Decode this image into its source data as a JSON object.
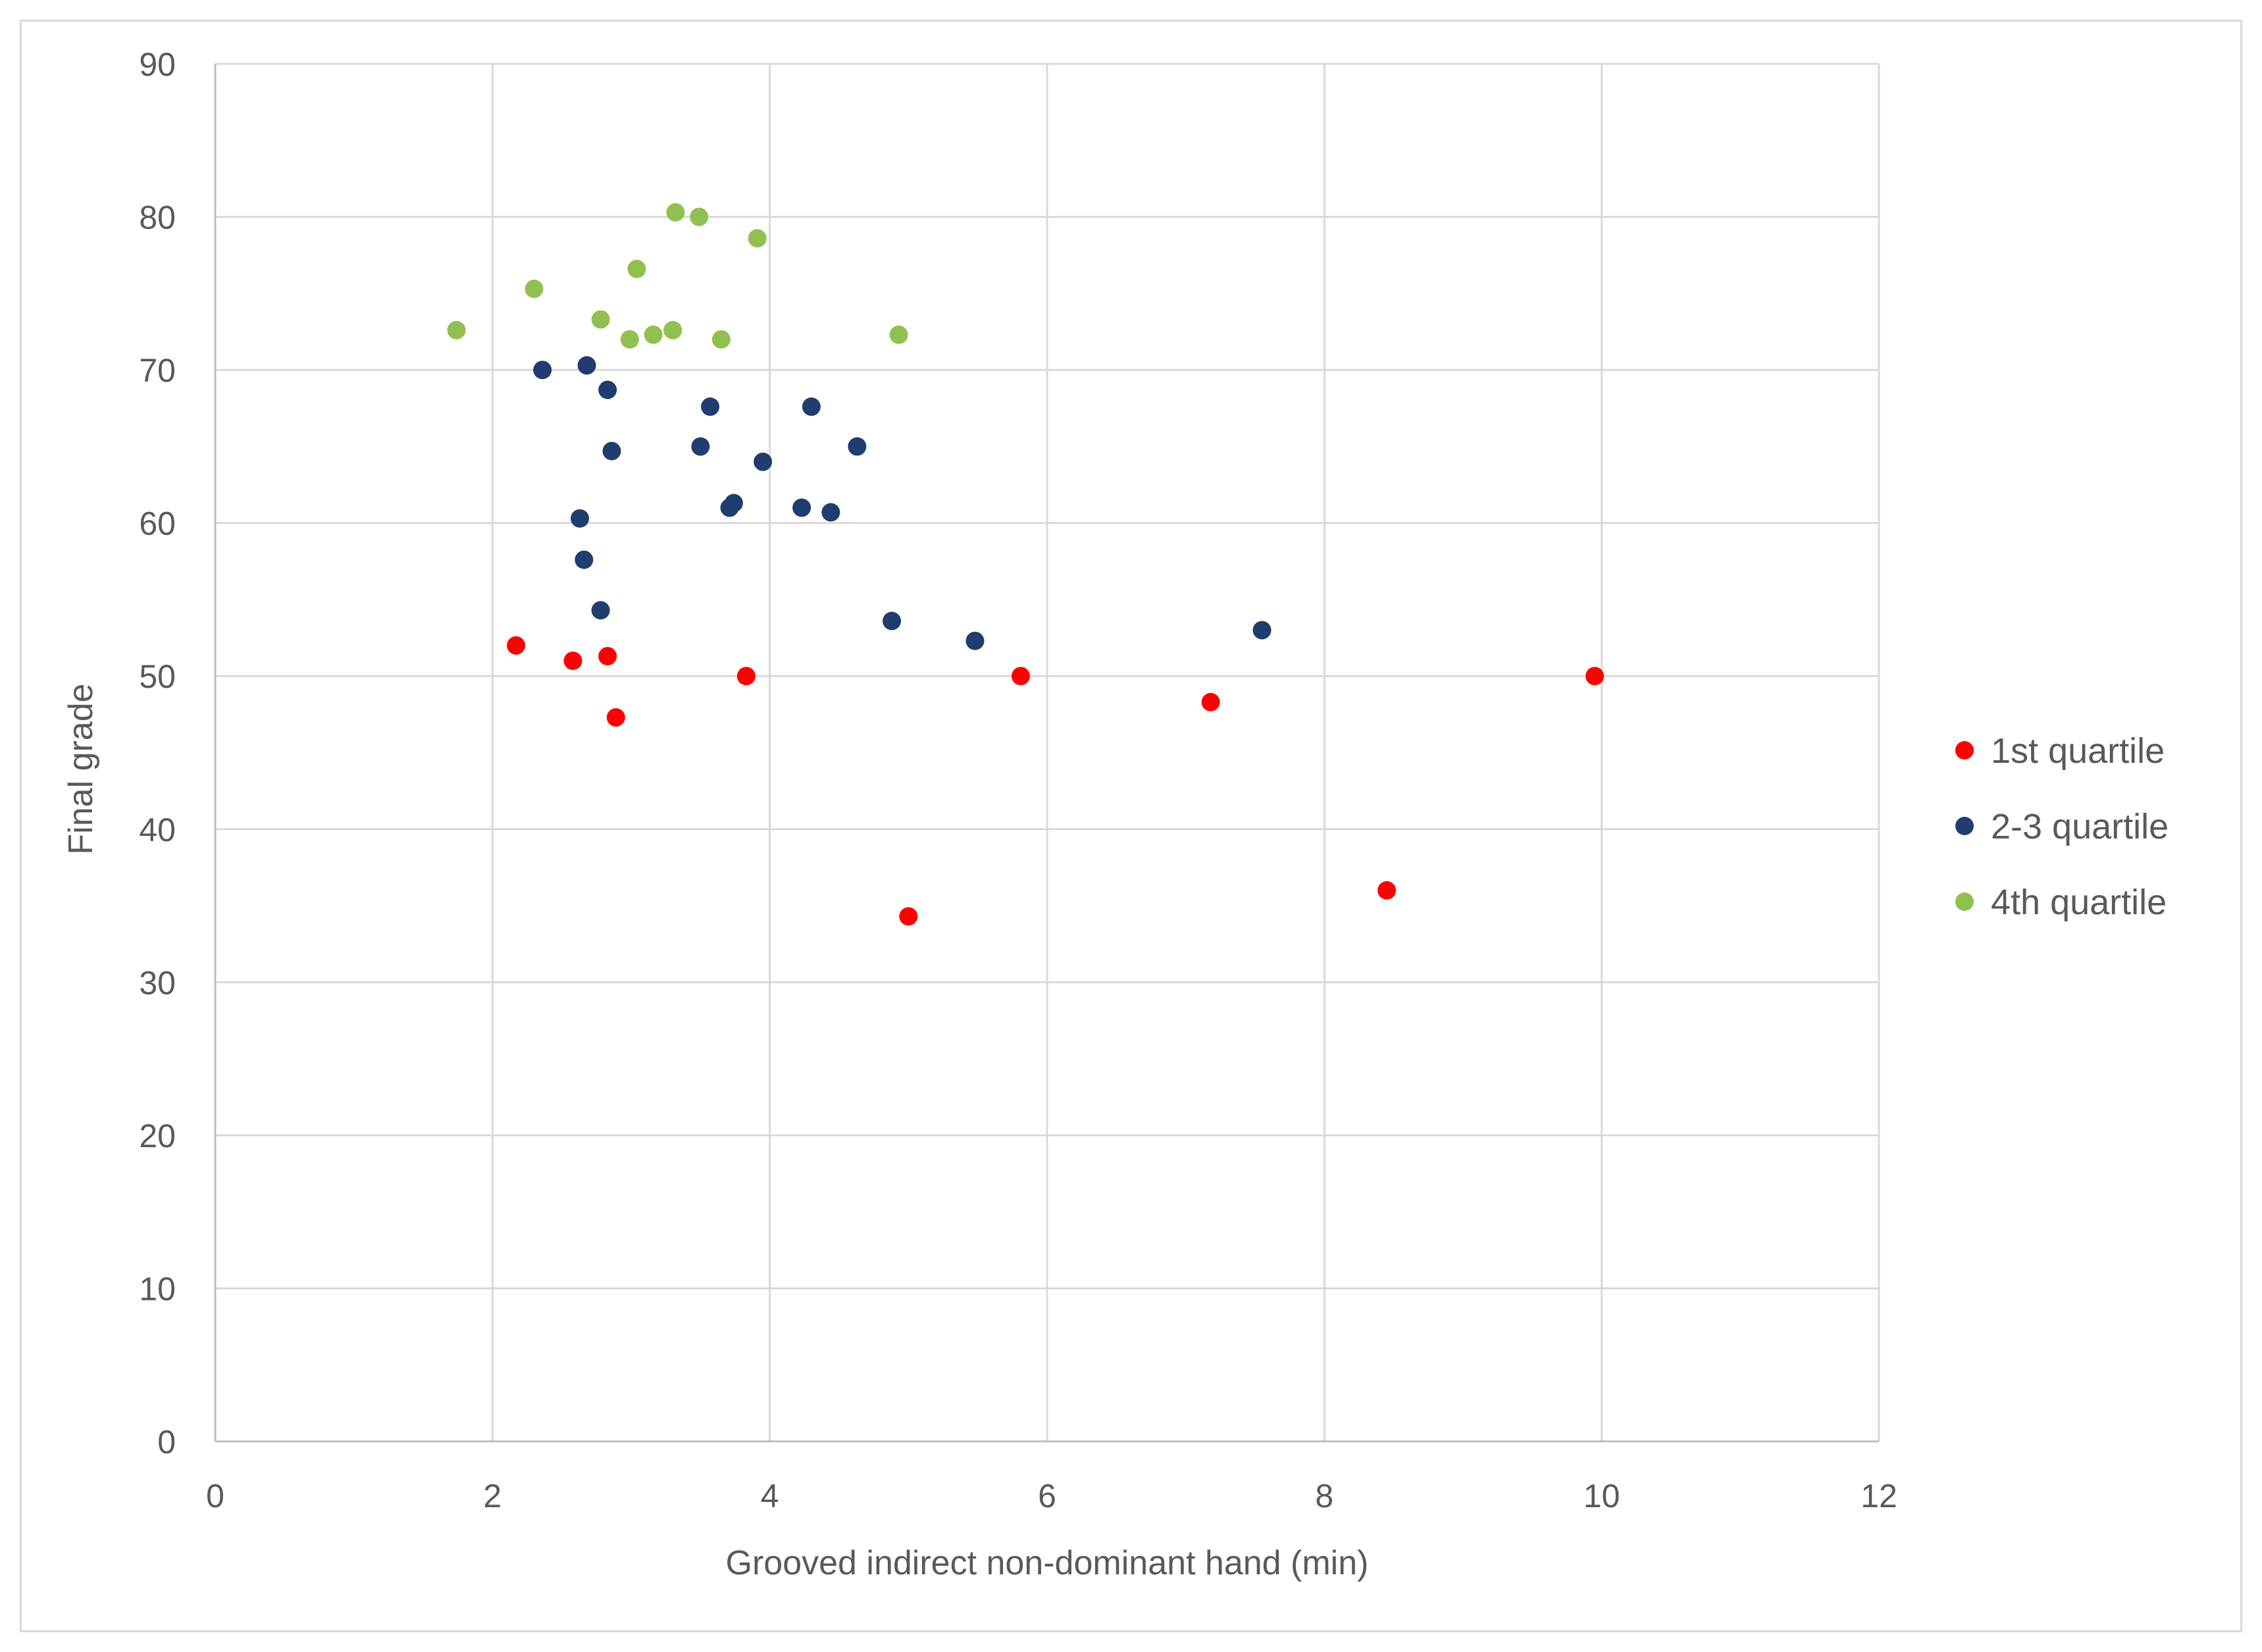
{
  "chart_data": {
    "type": "scatter",
    "title": "",
    "xlabel": "Grooved indirect non-dominant hand (min)",
    "ylabel": "Final grade",
    "xlim": [
      0,
      12
    ],
    "ylim": [
      0,
      90
    ],
    "xticks": [
      0,
      2,
      4,
      6,
      8,
      10,
      12
    ],
    "yticks": [
      0,
      10,
      20,
      30,
      40,
      50,
      60,
      70,
      80,
      90
    ],
    "grid": true,
    "legend_position": "right",
    "series": [
      {
        "name": "1st quartile",
        "color": "#ff0000",
        "points": [
          {
            "x": 2.17,
            "y": 52.0
          },
          {
            "x": 2.58,
            "y": 51.0
          },
          {
            "x": 2.83,
            "y": 51.3
          },
          {
            "x": 2.89,
            "y": 47.3
          },
          {
            "x": 3.83,
            "y": 50.0
          },
          {
            "x": 5.0,
            "y": 34.3
          },
          {
            "x": 5.81,
            "y": 50.0
          },
          {
            "x": 7.18,
            "y": 48.3
          },
          {
            "x": 8.45,
            "y": 36.0
          },
          {
            "x": 9.95,
            "y": 50.0
          }
        ]
      },
      {
        "name": "2-3 quartile",
        "color": "#1f3d6e",
        "points": [
          {
            "x": 2.36,
            "y": 70.0
          },
          {
            "x": 2.68,
            "y": 70.3
          },
          {
            "x": 2.83,
            "y": 68.7
          },
          {
            "x": 2.86,
            "y": 64.7
          },
          {
            "x": 2.63,
            "y": 60.3
          },
          {
            "x": 2.66,
            "y": 57.6
          },
          {
            "x": 2.78,
            "y": 54.3
          },
          {
            "x": 3.5,
            "y": 65.0
          },
          {
            "x": 3.57,
            "y": 67.6
          },
          {
            "x": 3.71,
            "y": 61.0
          },
          {
            "x": 3.74,
            "y": 61.3
          },
          {
            "x": 3.95,
            "y": 64.0
          },
          {
            "x": 4.23,
            "y": 61.0
          },
          {
            "x": 4.3,
            "y": 67.6
          },
          {
            "x": 4.44,
            "y": 60.7
          },
          {
            "x": 4.63,
            "y": 65.0
          },
          {
            "x": 4.88,
            "y": 53.6
          },
          {
            "x": 5.48,
            "y": 52.3
          },
          {
            "x": 7.55,
            "y": 53.0
          }
        ]
      },
      {
        "name": "4th quartile",
        "color": "#92c050",
        "points": [
          {
            "x": 1.74,
            "y": 72.6
          },
          {
            "x": 2.3,
            "y": 75.3
          },
          {
            "x": 2.78,
            "y": 73.3
          },
          {
            "x": 2.99,
            "y": 72.0
          },
          {
            "x": 3.04,
            "y": 76.6
          },
          {
            "x": 3.16,
            "y": 72.3
          },
          {
            "x": 3.3,
            "y": 72.6
          },
          {
            "x": 3.32,
            "y": 80.3
          },
          {
            "x": 3.49,
            "y": 80.0
          },
          {
            "x": 3.65,
            "y": 72.0
          },
          {
            "x": 3.91,
            "y": 78.6
          },
          {
            "x": 4.93,
            "y": 72.3
          }
        ]
      }
    ]
  }
}
